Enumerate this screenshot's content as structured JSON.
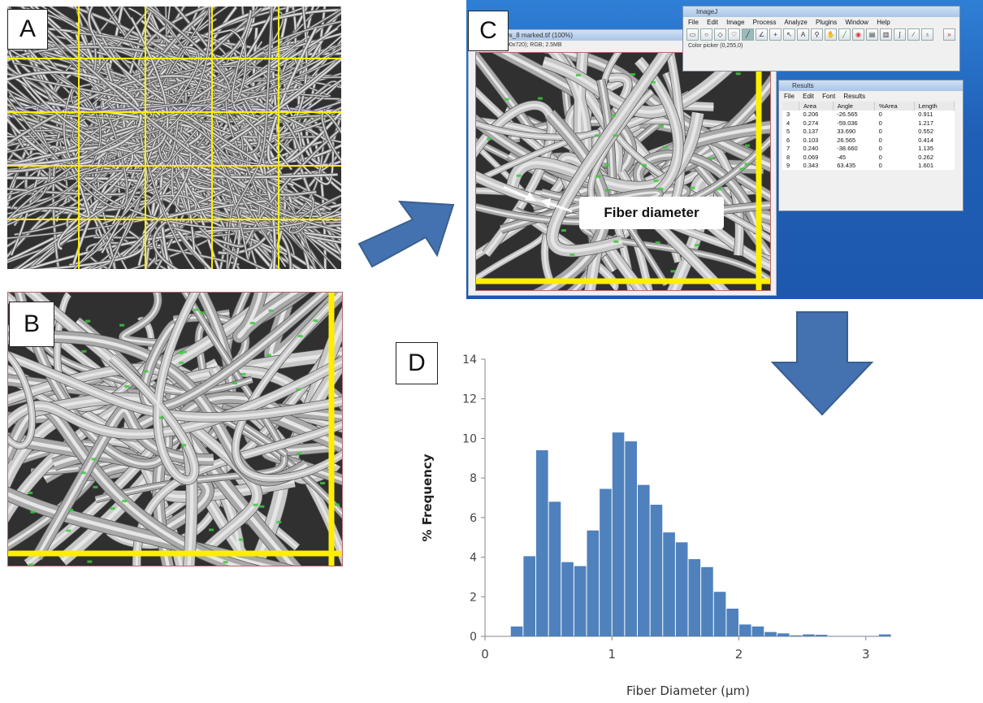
{
  "panels": {
    "a": {
      "label": "A"
    },
    "b": {
      "label": "B"
    },
    "c": {
      "label": "C"
    },
    "d": {
      "label": "D"
    }
  },
  "imagej": {
    "main_window": {
      "title": "ImageJ",
      "menu": [
        "File",
        "Edit",
        "Image",
        "Process",
        "Analyze",
        "Plugins",
        "Window",
        "Help"
      ],
      "status": "Color picker (0,255,0)"
    },
    "image_window": {
      "title": "...ner 500x_8 marked.tif (100%)",
      "info": "...3 inches (900x720); RGB; 2.5MB"
    },
    "results_window": {
      "title": "Results",
      "menu": [
        "File",
        "Edit",
        "Font",
        "Results"
      ],
      "columns": [
        "",
        "Area",
        "Angle",
        "%Area",
        "Length"
      ],
      "rows": [
        [
          "3",
          "0.206",
          "-26.565",
          "0",
          "0.911"
        ],
        [
          "4",
          "0.274",
          "-59.036",
          "0",
          "1.217"
        ],
        [
          "5",
          "0.137",
          "33.690",
          "0",
          "0.552"
        ],
        [
          "6",
          "0.103",
          "26.565",
          "0",
          "0.414"
        ],
        [
          "7",
          "0.240",
          "-38.660",
          "0",
          "1.135"
        ],
        [
          "8",
          "0.069",
          "-45",
          "0",
          "0.262"
        ],
        [
          "9",
          "0.343",
          "63.435",
          "0",
          "1.601"
        ]
      ]
    },
    "callout": "Fiber diameter"
  },
  "colors": {
    "bar": "#4f81bd",
    "arrow": "#4472b0",
    "arrow_edge": "#3a5f90",
    "grid_line": "#ffee00",
    "measure_mark": "#3cc83c"
  },
  "chart_data": {
    "type": "bar",
    "xlabel": "Fiber Diameter (µm)",
    "ylabel": "% Frequency",
    "xlim": [
      0,
      3.2
    ],
    "ylim": [
      0,
      14
    ],
    "x_ticks": [
      0,
      1,
      2,
      3
    ],
    "y_ticks": [
      0,
      2,
      4,
      6,
      8,
      10,
      12,
      14
    ],
    "bin_width": 0.1,
    "x": [
      0.15,
      0.25,
      0.35,
      0.45,
      0.55,
      0.65,
      0.75,
      0.85,
      0.95,
      1.05,
      1.15,
      1.25,
      1.35,
      1.45,
      1.55,
      1.65,
      1.75,
      1.85,
      1.95,
      2.05,
      2.15,
      2.25,
      2.35,
      2.45,
      2.55,
      2.65,
      2.75,
      2.85,
      2.95,
      3.05,
      3.15
    ],
    "values": [
      0.0,
      0.5,
      4.05,
      9.4,
      6.8,
      3.75,
      3.55,
      5.35,
      7.45,
      10.3,
      9.85,
      7.65,
      6.65,
      5.25,
      4.75,
      3.9,
      3.5,
      2.25,
      1.4,
      0.6,
      0.5,
      0.22,
      0.15,
      0.05,
      0.1,
      0.08,
      0.02,
      0.02,
      0.02,
      0.02,
      0.1
    ]
  }
}
